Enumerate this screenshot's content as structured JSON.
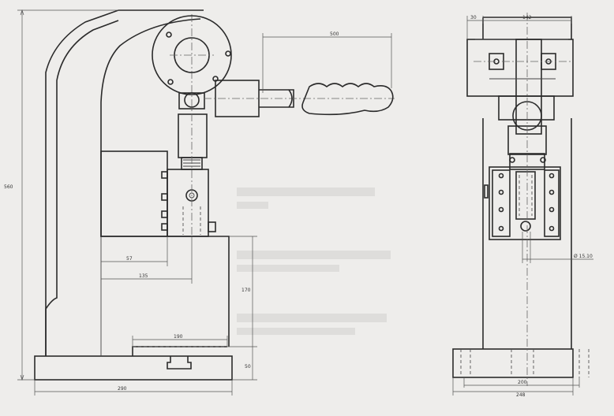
{
  "drawing": {
    "dimensions": {
      "d560": "560",
      "d290": "290",
      "d190": "190",
      "d170": "170",
      "d50": "50",
      "d500": "500",
      "d57": "57",
      "d135": "135",
      "d30": "30",
      "d142": "142",
      "d200": "200",
      "d248": "248",
      "phi": "Ø 15.10"
    },
    "colors": {
      "paper": "#eeedeb",
      "line": "#2b2b2b",
      "ghost_text": "#d6d5d3"
    },
    "icons": [
      "hand-lever-handle",
      "counterweight-disc",
      "t-slot"
    ]
  }
}
